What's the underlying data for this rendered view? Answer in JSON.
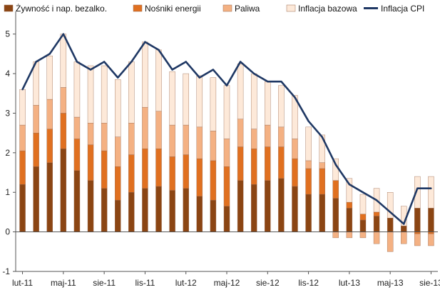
{
  "chart_data": {
    "type": "bar",
    "stacked": true,
    "title": "",
    "xlabel": "",
    "ylabel": "",
    "ylim": [
      -1,
      5.5
    ],
    "yticks": [
      -1,
      0,
      1,
      2,
      3,
      4,
      5
    ],
    "grid": false,
    "legend_position": "top",
    "months": [
      "lut-11",
      "mar-11",
      "kwi-11",
      "maj-11",
      "cze-11",
      "lip-11",
      "sie-11",
      "wrz-11",
      "paź-11",
      "lis-11",
      "gru-11",
      "sty-12",
      "lut-12",
      "mar-12",
      "kwi-12",
      "maj-12",
      "cze-12",
      "lip-12",
      "sie-12",
      "wrz-12",
      "paź-12",
      "lis-12",
      "gru-12",
      "sty-13",
      "lut-13",
      "mar-13",
      "kwi-13",
      "maj-13",
      "cze-13",
      "lip-13",
      "sie-13"
    ],
    "x_tick_labels": [
      {
        "index": 0,
        "label": "lut-11"
      },
      {
        "index": 3,
        "label": "maj-11"
      },
      {
        "index": 6,
        "label": "sie-11"
      },
      {
        "index": 9,
        "label": "lis-11"
      },
      {
        "index": 12,
        "label": "lut-12"
      },
      {
        "index": 15,
        "label": "maj-12"
      },
      {
        "index": 18,
        "label": "sie-12"
      },
      {
        "index": 21,
        "label": "lis-12"
      },
      {
        "index": 24,
        "label": "lut-13"
      },
      {
        "index": 27,
        "label": "maj-13"
      },
      {
        "index": 30,
        "label": "sie-13"
      }
    ],
    "series": [
      {
        "name": "Żywność i nap. bezalko.",
        "kind": "bar",
        "color": "#8B4513",
        "values": [
          1.2,
          1.65,
          1.75,
          2.1,
          1.55,
          1.3,
          1.1,
          0.8,
          1.0,
          1.1,
          1.15,
          1.05,
          1.1,
          0.9,
          0.8,
          0.65,
          1.3,
          1.2,
          1.3,
          1.35,
          1.15,
          0.95,
          0.95,
          0.85,
          0.6,
          0.3,
          0.4,
          0.35,
          0.15,
          0.6,
          0.6
        ]
      },
      {
        "name": "Nośniki energii",
        "kind": "bar",
        "color": "#E07020",
        "values": [
          0.85,
          0.85,
          0.85,
          0.9,
          0.8,
          0.9,
          0.95,
          0.85,
          0.95,
          1.0,
          0.95,
          0.85,
          0.85,
          0.95,
          1.0,
          1.0,
          0.85,
          0.9,
          0.85,
          0.8,
          0.7,
          0.65,
          0.65,
          0.45,
          0.15,
          0.15,
          0.1,
          0.0,
          0.0,
          -0.05,
          -0.05
        ]
      },
      {
        "name": "Paliwa",
        "kind": "bar",
        "color": "#F4B183",
        "values": [
          0.65,
          0.7,
          0.75,
          0.65,
          0.55,
          0.55,
          0.7,
          0.75,
          0.8,
          1.05,
          0.95,
          0.8,
          0.75,
          0.8,
          0.75,
          0.7,
          0.7,
          0.5,
          0.55,
          0.5,
          0.5,
          0.2,
          0.15,
          -0.15,
          -0.15,
          -0.15,
          -0.3,
          -0.5,
          -0.3,
          -0.3,
          -0.3
        ]
      },
      {
        "name": "Inflacja bazowa",
        "kind": "bar",
        "color": "#FDE9D9",
        "values": [
          0.9,
          1.1,
          1.1,
          1.35,
          1.4,
          1.45,
          1.45,
          1.45,
          1.55,
          1.65,
          1.55,
          1.35,
          1.3,
          1.3,
          1.35,
          1.35,
          1.4,
          1.4,
          1.1,
          1.05,
          1.1,
          0.85,
          0.7,
          0.55,
          0.6,
          0.5,
          0.6,
          0.65,
          0.5,
          0.8,
          0.8
        ]
      },
      {
        "name": "Inflacja CPI",
        "kind": "line",
        "color": "#1F3864",
        "values": [
          3.6,
          4.3,
          4.5,
          5.0,
          4.3,
          4.1,
          4.3,
          3.9,
          4.3,
          4.8,
          4.6,
          4.1,
          4.3,
          3.9,
          4.1,
          3.7,
          4.3,
          4.0,
          3.8,
          3.8,
          3.4,
          2.8,
          2.4,
          1.7,
          1.2,
          1.0,
          0.8,
          0.5,
          0.2,
          1.1,
          1.1
        ]
      }
    ]
  }
}
